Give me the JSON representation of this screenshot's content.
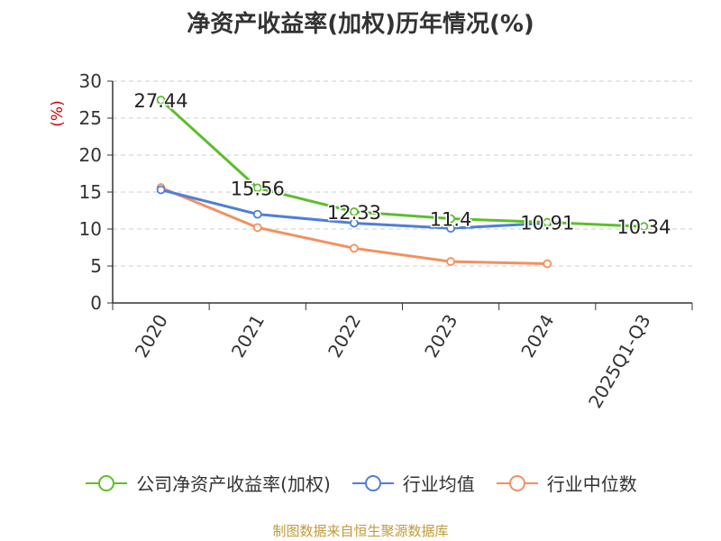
{
  "title": "净资产收益率(加权)历年情况(%)",
  "source": "制图数据来自恒生聚源数据库",
  "colors": {
    "company": "#5cbf2a",
    "industry_avg": "#4e7fd8",
    "industry_median": "#f4905e",
    "value_label_outline": "#ffffff",
    "ylabel": "#cc0000",
    "grid": "#cccccc",
    "axis": "#333333"
  },
  "chart_data": {
    "type": "line",
    "title": "净资产收益率(加权)历年情况(%)",
    "xlabel": "",
    "ylabel": "(%)",
    "ylim": [
      0,
      30
    ],
    "yticks": [
      0,
      5,
      10,
      15,
      20,
      25,
      30
    ],
    "grid": true,
    "legend_position": "bottom",
    "categories": [
      "2020",
      "2021",
      "2022",
      "2023",
      "2024",
      "2025Q1-Q3"
    ],
    "series": [
      {
        "name": "公司净资产收益率(加权)",
        "color_key": "company",
        "values": [
          27.44,
          15.56,
          12.33,
          11.4,
          10.91,
          10.34
        ],
        "labels": [
          "27.44",
          "15.56",
          "12.33",
          "11.4",
          "10.91",
          "10.34"
        ]
      },
      {
        "name": "行业均值",
        "color_key": "industry_avg",
        "values": [
          15.3,
          12.0,
          10.8,
          10.1,
          10.8,
          null
        ]
      },
      {
        "name": "行业中位数",
        "color_key": "industry_median",
        "values": [
          15.6,
          10.2,
          7.4,
          5.6,
          5.3,
          null
        ]
      }
    ]
  }
}
